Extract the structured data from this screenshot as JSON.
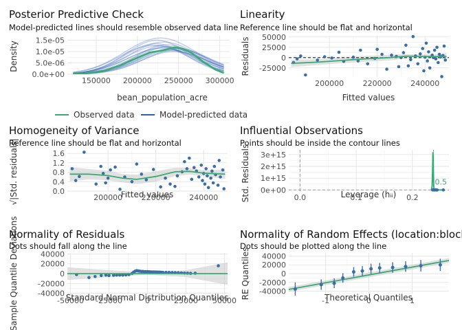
{
  "colors": {
    "green": "#3aaa75",
    "blue": "#2f5fb5",
    "point": "#3a6ea5",
    "band": "#c8c8c8",
    "ref": "#222222",
    "contour": "#3aaa75"
  },
  "panels": [
    {
      "id": "ppc",
      "title": "Posterior Predictive Check",
      "subtitle": "Model-predicted lines should resemble observed data line",
      "xlabel": "bean_population_acre",
      "ylabel": "Density",
      "legend": {
        "observed": "Observed data",
        "predicted": "Model-predicted data"
      }
    },
    {
      "id": "linearity",
      "title": "Linearity",
      "subtitle": "Reference line should be flat and horizontal",
      "xlabel": "Fitted values",
      "ylabel": "Residuals"
    },
    {
      "id": "homogeneity",
      "title": "Homogeneity of Variance",
      "subtitle": "Reference line should be flat and horizontal",
      "xlabel": "Fitted values",
      "ylabel": "√|Std. residuals|"
    },
    {
      "id": "influential",
      "title": "Influential Observations",
      "subtitle": "Points should be inside the contour lines",
      "xlabel": "Leverage (hᵢᵢ)",
      "ylabel": "Std. Residuals",
      "contour_label": "0.5"
    },
    {
      "id": "qq",
      "title": "Normality of Residuals",
      "subtitle": "Dots should fall along the line",
      "xlabel": "Standard Normal Distribution Quantiles",
      "ylabel": "Sample Quantile Deviations"
    },
    {
      "id": "re",
      "title": "Normality of Random Effects (location:block)",
      "subtitle": "Dots should be plotted along the line",
      "xlabel": "Theoretical Quantiles",
      "ylabel": "RE Quantiles"
    }
  ],
  "chart_data": [
    {
      "type": "line",
      "panel": "ppc",
      "xlim": [
        115000,
        312000
      ],
      "ylim": [
        0,
        1.7e-05
      ],
      "x_ticks": [
        150000,
        200000,
        250000,
        300000
      ],
      "x_tick_labels": [
        "150000",
        "200000",
        "250000",
        "300000"
      ],
      "y_ticks": [
        0,
        5e-06,
        1e-05,
        1.5e-05
      ],
      "y_tick_labels": [
        "0.0e+00",
        "5.0e-06",
        "1.0e-05",
        "1.5e-05"
      ],
      "observed": {
        "x": [
          122000,
          140000,
          160000,
          180000,
          200000,
          215000,
          230000,
          245000,
          255000,
          265000,
          280000,
          295000,
          305000
        ],
        "y": [
          2e-07,
          5e-07,
          1.6e-06,
          4e-06,
          7.3e-06,
          9.6e-06,
          1.05e-05,
          1.18e-05,
          1.13e-05,
          9.6e-06,
          5.5e-06,
          2e-06,
          6e-07
        ]
      },
      "predicted_peaks": [
        222000,
        226000,
        230000,
        234000,
        238000,
        242000,
        246000,
        228000,
        236000,
        244000,
        232000,
        240000,
        224000,
        248000,
        220000
      ],
      "predicted_heights": [
        1.35e-05,
        1.25e-05,
        1.15e-05,
        1.2e-05,
        1.1e-05,
        1.05e-05,
        1.15e-05,
        1.6e-05,
        1.3e-05,
        1e-05,
        1.42e-05,
        1.22e-05,
        1.5e-05,
        1.08e-05,
        1.28e-05
      ],
      "predicted_sd": 38000
    },
    {
      "type": "scatter",
      "panel": "linearity",
      "xlim": [
        183000,
        250000
      ],
      "ylim": [
        -47000,
        53000
      ],
      "x_ticks": [
        200000,
        220000,
        240000
      ],
      "x_tick_labels": [
        "200000",
        "220000",
        "240000"
      ],
      "y_ticks": [
        -25000,
        0,
        25000,
        50000
      ],
      "y_tick_labels": [
        "-25000",
        "0",
        "25000",
        "50000"
      ],
      "points": [
        [
          185000,
          -12000
        ],
        [
          186500,
          -3000
        ],
        [
          188000,
          4000
        ],
        [
          190000,
          -42000
        ],
        [
          195000,
          -6000
        ],
        [
          198000,
          2000
        ],
        [
          201000,
          -1000
        ],
        [
          204000,
          13000
        ],
        [
          206000,
          -9000
        ],
        [
          210000,
          1000
        ],
        [
          213000,
          18000
        ],
        [
          216000,
          -15000
        ],
        [
          219000,
          -2000
        ],
        [
          222000,
          8000
        ],
        [
          224000,
          -28000
        ],
        [
          226000,
          6000
        ],
        [
          228000,
          3000
        ],
        [
          229000,
          -22000
        ],
        [
          231000,
          12000
        ],
        [
          232000,
          30000
        ],
        [
          233000,
          -20000
        ],
        [
          234000,
          -5000
        ],
        [
          235000,
          51000
        ],
        [
          236000,
          4000
        ],
        [
          237000,
          -15000
        ],
        [
          238000,
          9000
        ],
        [
          239000,
          22000
        ],
        [
          239500,
          -32000
        ],
        [
          240000,
          1000
        ],
        [
          240500,
          35000
        ],
        [
          241000,
          -8000
        ],
        [
          241500,
          14000
        ],
        [
          242000,
          -25000
        ],
        [
          243000,
          6000
        ],
        [
          243500,
          0
        ],
        [
          244000,
          18000
        ],
        [
          244500,
          -3000
        ],
        [
          245000,
          25000
        ],
        [
          245500,
          -12000
        ],
        [
          246000,
          8000
        ],
        [
          246500,
          2000
        ],
        [
          247000,
          -46000
        ],
        [
          247500,
          5000
        ],
        [
          248000,
          28000
        ],
        [
          248500,
          -6000
        ],
        [
          220000,
          20000
        ],
        [
          212000,
          -8000
        ],
        [
          230000,
          0
        ]
      ],
      "smooth": {
        "x": [
          184000,
          195000,
          205000,
          215000,
          225000,
          232000,
          238000,
          244000,
          249000
        ],
        "y": [
          -14000,
          -11000,
          -7000,
          -3000,
          0,
          3500,
          3000,
          2500,
          3000
        ]
      },
      "band_half_width": [
        9000,
        7000,
        6500,
        7000,
        7000,
        5000,
        4500,
        5000,
        8000
      ],
      "reference_y": 0
    },
    {
      "type": "scatter",
      "panel": "homogeneity",
      "xlim": [
        183000,
        250000
      ],
      "ylim": [
        0,
        1.75
      ],
      "x_ticks": [
        200000,
        220000,
        240000
      ],
      "x_tick_labels": [
        "200000",
        "220000",
        "240000"
      ],
      "y_ticks": [
        0,
        0.4,
        0.8,
        1.2,
        1.6
      ],
      "y_tick_labels": [
        "0.0",
        "0.4",
        "0.8",
        "1.2",
        "1.6"
      ],
      "points": [
        [
          185000,
          0.95
        ],
        [
          186500,
          0.45
        ],
        [
          188000,
          0.62
        ],
        [
          190000,
          1.65
        ],
        [
          195000,
          0.3
        ],
        [
          197000,
          1.05
        ],
        [
          198000,
          0.75
        ],
        [
          200000,
          0.55
        ],
        [
          201000,
          0.9
        ],
        [
          203000,
          1.02
        ],
        [
          205000,
          0.08
        ],
        [
          207000,
          0.6
        ],
        [
          210000,
          0.4
        ],
        [
          212000,
          1.15
        ],
        [
          214000,
          0.72
        ],
        [
          216000,
          0.48
        ],
        [
          219000,
          0.92
        ],
        [
          222000,
          0.18
        ],
        [
          224000,
          0.55
        ],
        [
          226000,
          0.3
        ],
        [
          229000,
          0.65
        ],
        [
          231000,
          0.82
        ],
        [
          232000,
          1.25
        ],
        [
          233000,
          0.95
        ],
        [
          234000,
          1.4
        ],
        [
          235000,
          0.5
        ],
        [
          236000,
          1.0
        ],
        [
          237000,
          0.85
        ],
        [
          238000,
          0.6
        ],
        [
          239000,
          1.1
        ],
        [
          239500,
          0.45
        ],
        [
          240000,
          0.75
        ],
        [
          240500,
          0.3
        ],
        [
          241000,
          0.95
        ],
        [
          241500,
          0.65
        ],
        [
          242000,
          0.15
        ],
        [
          243000,
          0.55
        ],
        [
          243500,
          0.85
        ],
        [
          244000,
          0.35
        ],
        [
          244500,
          1.05
        ],
        [
          245000,
          0.7
        ],
        [
          246000,
          0.25
        ],
        [
          246500,
          1.3
        ],
        [
          247000,
          0.6
        ],
        [
          248000,
          0.9
        ],
        [
          248500,
          0.1
        ],
        [
          199000,
          0.35
        ],
        [
          228000,
          0.2
        ]
      ],
      "smooth": {
        "x": [
          184000,
          192000,
          200000,
          206000,
          212000,
          220000,
          228000,
          234000,
          240000,
          249000
        ],
        "y": [
          0.72,
          0.72,
          0.66,
          0.55,
          0.5,
          0.62,
          0.82,
          0.84,
          0.76,
          0.72
        ]
      },
      "band_half_width": [
        0.3,
        0.22,
        0.2,
        0.18,
        0.2,
        0.22,
        0.18,
        0.14,
        0.12,
        0.2
      ]
    },
    {
      "type": "scatter",
      "panel": "influential",
      "xlim": [
        -0.02,
        0.265
      ],
      "ylim": [
        -100000000000000.0,
        3400000000000000.0
      ],
      "x_ticks": [
        0,
        0.1,
        0.2
      ],
      "x_tick_labels": [
        "0.0",
        "0.1",
        "0.2"
      ],
      "y_ticks": [
        0,
        1000000000000000.0,
        2000000000000000.0,
        3000000000000000.0
      ],
      "y_tick_labels": [
        "0e+00",
        "1e+15",
        "2e+15",
        "3e+15"
      ],
      "points": [
        [
          0.236,
          0
        ],
        [
          0.238,
          0
        ],
        [
          0.24,
          0
        ],
        [
          0.242,
          0
        ],
        [
          0.244,
          0
        ],
        [
          0.255,
          0
        ]
      ],
      "contour": {
        "x": [
          0.234,
          0.235,
          0.236,
          0.2365,
          0.237,
          0.2375,
          0.238,
          0.239
        ],
        "y": [
          10000000000000.0,
          300000000000000.0,
          1800000000000000.0,
          3200000000000000.0,
          2600000000000000.0,
          1200000000000000.0,
          300000000000000.0,
          10000000000000.0
        ]
      },
      "contour_baseline": [
        0.239,
        0.257
      ],
      "ref_v": [
        0.0,
        0.2375
      ]
    },
    {
      "type": "scatter",
      "panel": "qq",
      "xlim": [
        -52000,
        52000
      ],
      "ylim": [
        -42000,
        42000
      ],
      "x_ticks": [
        -50000,
        -25000,
        0,
        25000,
        50000
      ],
      "x_tick_labels": [
        "-50000",
        "-25000",
        "0",
        "25000",
        "50000"
      ],
      "y_ticks": [
        -40000,
        -20000,
        0,
        20000,
        40000
      ],
      "y_tick_labels": [
        "-40000",
        "-20000",
        "0",
        "20000",
        "40000"
      ],
      "points": [
        [
          -46000,
          -2000
        ],
        [
          -38000,
          -8000
        ],
        [
          -34000,
          -6000
        ],
        [
          -30000,
          -4000
        ],
        [
          -27000,
          -3000
        ],
        [
          -25000,
          -4000
        ],
        [
          -22000,
          -3500
        ],
        [
          -20000,
          -3000
        ],
        [
          -18000,
          -3000
        ],
        [
          -16000,
          -3000
        ],
        [
          -14000,
          -2500
        ],
        [
          -12000,
          -2000
        ],
        [
          -10000,
          500
        ],
        [
          -9000,
          3000
        ],
        [
          -8000,
          5000
        ],
        [
          -7000,
          6000
        ],
        [
          -6000,
          5500
        ],
        [
          -5000,
          5000
        ],
        [
          -4000,
          4500
        ],
        [
          -3000,
          4500
        ],
        [
          -2000,
          4000
        ],
        [
          -1000,
          4000
        ],
        [
          0,
          4000
        ],
        [
          1000,
          3800
        ],
        [
          2000,
          3600
        ],
        [
          3000,
          3500
        ],
        [
          4000,
          3400
        ],
        [
          5000,
          3300
        ],
        [
          6000,
          3200
        ],
        [
          7000,
          3100
        ],
        [
          8000,
          3000
        ],
        [
          9000,
          2800
        ],
        [
          10000,
          2600
        ],
        [
          12000,
          2500
        ],
        [
          14000,
          2400
        ],
        [
          16000,
          2200
        ],
        [
          18000,
          2000
        ],
        [
          20000,
          1800
        ],
        [
          22000,
          1500
        ],
        [
          24000,
          1200
        ],
        [
          26000,
          900
        ],
        [
          28000,
          600
        ],
        [
          31000,
          800
        ],
        [
          46000,
          16000
        ]
      ],
      "ref_y": 0,
      "band_x": [
        -52000,
        -25000,
        0,
        25000,
        52000
      ],
      "band_half_width": [
        13000,
        7000,
        2500,
        7000,
        23000
      ]
    },
    {
      "type": "scatter",
      "panel": "re",
      "xlim": [
        -1.85,
        1.85
      ],
      "ylim": [
        -47000,
        47000
      ],
      "x_ticks": [
        -1,
        0,
        1
      ],
      "x_tick_labels": [
        "-1",
        "0",
        "1"
      ],
      "y_ticks": [
        -40000,
        -20000,
        0,
        20000,
        40000
      ],
      "y_tick_labels": [
        "-40000",
        "-20000",
        "0",
        "20000",
        "40000"
      ],
      "points": [
        [
          -1.7,
          -35000
        ],
        [
          -1.1,
          -25000
        ],
        [
          -0.8,
          -22000
        ],
        [
          -0.6,
          -10000
        ],
        [
          -0.35,
          4000
        ],
        [
          -0.15,
          6000
        ],
        [
          0.05,
          11000
        ],
        [
          0.25,
          13000
        ],
        [
          0.55,
          14000
        ],
        [
          0.85,
          16000
        ],
        [
          1.2,
          18000
        ],
        [
          1.65,
          20000
        ]
      ],
      "errors": [
        15000,
        12000,
        11000,
        11000,
        11000,
        11000,
        11500,
        11500,
        12000,
        12000,
        13000,
        14000
      ],
      "line": {
        "x": [
          -1.85,
          1.85
        ],
        "y": [
          -36000,
          30000
        ]
      },
      "band_half_width": 5500
    }
  ]
}
